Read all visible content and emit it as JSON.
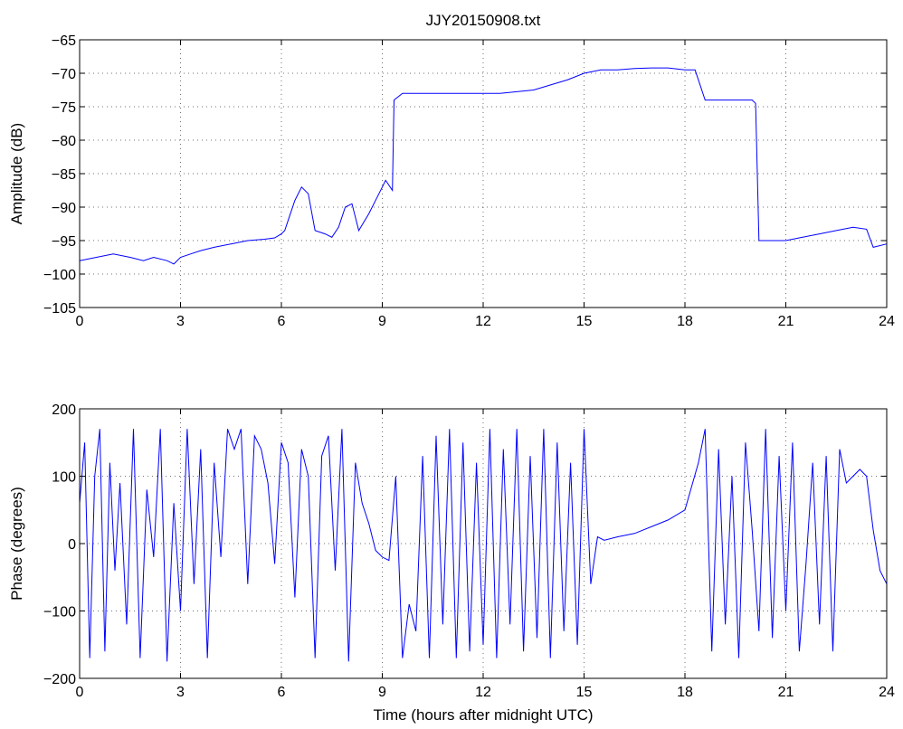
{
  "chart_data": [
    {
      "type": "line",
      "title": "JJY20150908.txt",
      "xlabel": "",
      "ylabel": "Amplitude (dB)",
      "xlim": [
        0,
        24
      ],
      "ylim": [
        -105,
        -65
      ],
      "xticks": [
        "0",
        "3",
        "6",
        "9",
        "12",
        "15",
        "18",
        "21",
        "24"
      ],
      "yticks": [
        "-65",
        "-70",
        "-75",
        "-80",
        "-85",
        "-90",
        "-95",
        "-100",
        "-105"
      ],
      "grid": true,
      "series": [
        {
          "color": "#0000ff",
          "x": [
            0,
            0.5,
            1,
            1.5,
            1.9,
            2.2,
            2.6,
            2.8,
            3.0,
            3.3,
            3.6,
            4.0,
            4.5,
            5.0,
            5.5,
            5.8,
            6.0,
            6.1,
            6.2,
            6.4,
            6.6,
            6.8,
            7.0,
            7.3,
            7.5,
            7.7,
            7.9,
            8.1,
            8.3,
            8.6,
            8.9,
            9.1,
            9.3,
            9.35,
            9.6,
            10.5,
            11.5,
            12.5,
            13.5,
            14.5,
            15.0,
            15.5,
            16.0,
            16.5,
            17.0,
            17.5,
            18.0,
            18.3,
            18.6,
            19.0,
            19.5,
            20.0,
            20.1,
            20.2,
            20.6,
            21.0,
            21.5,
            22.0,
            22.5,
            23.0,
            23.4,
            23.6,
            24.0
          ],
          "y": [
            -98,
            -97.5,
            -97,
            -97.5,
            -98,
            -97.5,
            -98,
            -98.5,
            -97.5,
            -97,
            -96.5,
            -96,
            -95.5,
            -95,
            -94.8,
            -94.6,
            -94,
            -93.5,
            -92,
            -89,
            -87,
            -88,
            -93.5,
            -94,
            -94.5,
            -93,
            -90,
            -89.5,
            -93.5,
            -91,
            -88,
            -86,
            -87.5,
            -74,
            -73,
            -73,
            -73,
            -73,
            -72.5,
            -71,
            -70,
            -69.5,
            -69.5,
            -69.3,
            -69.2,
            -69.2,
            -69.5,
            -69.5,
            -74,
            -74,
            -74,
            -74,
            -74.5,
            -95,
            -95,
            -95,
            -94.5,
            -94,
            -93.5,
            -93,
            -93.3,
            -96,
            -95.5
          ]
        }
      ]
    },
    {
      "type": "line",
      "title": "",
      "xlabel": "Time (hours after midnight UTC)",
      "ylabel": "Phase (degrees)",
      "xlim": [
        0,
        24
      ],
      "ylim": [
        -200,
        200
      ],
      "xticks": [
        "0",
        "3",
        "6",
        "9",
        "12",
        "15",
        "18",
        "21",
        "24"
      ],
      "yticks": [
        "200",
        "100",
        "0",
        "-100",
        "-200"
      ],
      "grid": true,
      "series": [
        {
          "color": "#0000ff",
          "x": [
            0,
            0.15,
            0.3,
            0.45,
            0.6,
            0.75,
            0.9,
            1.05,
            1.2,
            1.4,
            1.6,
            1.8,
            2.0,
            2.2,
            2.4,
            2.6,
            2.8,
            3.0,
            3.2,
            3.4,
            3.6,
            3.8,
            4.0,
            4.2,
            4.4,
            4.6,
            4.8,
            5.0,
            5.2,
            5.4,
            5.6,
            5.8,
            6.0,
            6.2,
            6.4,
            6.6,
            6.8,
            7.0,
            7.2,
            7.4,
            7.6,
            7.8,
            8.0,
            8.2,
            8.4,
            8.6,
            8.8,
            9.0,
            9.2,
            9.4,
            9.6,
            9.8,
            10.0,
            10.2,
            10.4,
            10.6,
            10.8,
            11.0,
            11.2,
            11.4,
            11.6,
            11.8,
            12.0,
            12.2,
            12.4,
            12.6,
            12.8,
            13.0,
            13.2,
            13.4,
            13.6,
            13.8,
            14.0,
            14.2,
            14.4,
            14.6,
            14.8,
            15.0,
            15.2,
            15.4,
            15.6,
            16.0,
            16.5,
            17.0,
            17.5,
            18.0,
            18.4,
            18.6,
            18.8,
            19.0,
            19.2,
            19.4,
            19.6,
            19.8,
            20.0,
            20.2,
            20.4,
            20.6,
            20.8,
            21.0,
            21.2,
            21.4,
            21.6,
            21.8,
            22.0,
            22.2,
            22.4,
            22.6,
            22.8,
            23.0,
            23.2,
            23.4,
            23.6,
            23.8,
            24.0
          ],
          "y": [
            60,
            150,
            -170,
            100,
            170,
            -160,
            120,
            -40,
            90,
            -120,
            170,
            -170,
            80,
            -20,
            170,
            -175,
            60,
            -100,
            170,
            -60,
            140,
            -170,
            120,
            -20,
            170,
            140,
            170,
            -60,
            160,
            140,
            90,
            -30,
            150,
            120,
            -80,
            140,
            100,
            -170,
            130,
            160,
            -40,
            170,
            -175,
            120,
            60,
            30,
            -10,
            -20,
            -25,
            100,
            -170,
            -90,
            -130,
            130,
            -170,
            160,
            -120,
            170,
            -170,
            150,
            -160,
            120,
            -150,
            170,
            -170,
            140,
            -120,
            170,
            -160,
            130,
            -140,
            170,
            -170,
            150,
            -130,
            120,
            -150,
            170,
            -60,
            10,
            5,
            10,
            15,
            25,
            35,
            50,
            120,
            170,
            -160,
            140,
            -120,
            100,
            -170,
            150,
            20,
            -130,
            170,
            -140,
            130,
            -100,
            150,
            -160,
            -30,
            120,
            -120,
            130,
            -160,
            140,
            90,
            100,
            110,
            100,
            20,
            -40,
            -60
          ]
        }
      ]
    }
  ]
}
